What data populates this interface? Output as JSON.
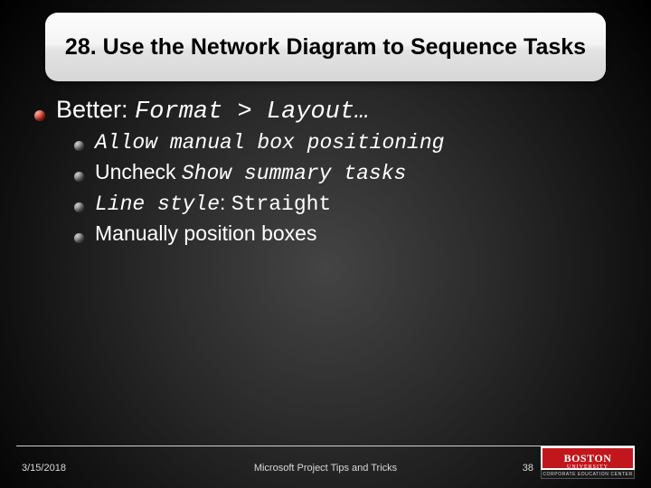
{
  "title": "28. Use the Network Diagram to Sequence Tasks",
  "bullets": {
    "lvl1_prefix": "Better: ",
    "lvl1_mono": "Format > Layout…",
    "sub1": "Allow manual box positioning",
    "sub2_prefix": "Uncheck ",
    "sub2_mono": "Show summary tasks",
    "sub3_mono1": "Line style",
    "sub3_colon": ": ",
    "sub3_mono2": "Straight",
    "sub4": "Manually position boxes"
  },
  "footer": {
    "date": "3/15/2018",
    "title": "Microsoft Project Tips and Tricks",
    "page": "38"
  },
  "logo": {
    "line1": "BOSTON",
    "line2": "UNIVERSITY",
    "line3": "CORPORATE EDUCATION CENTER"
  },
  "colors": {
    "bullet_red": "#b01a0c",
    "bullet_grey": "#4e4e4e",
    "logo_red": "#c1171c"
  }
}
